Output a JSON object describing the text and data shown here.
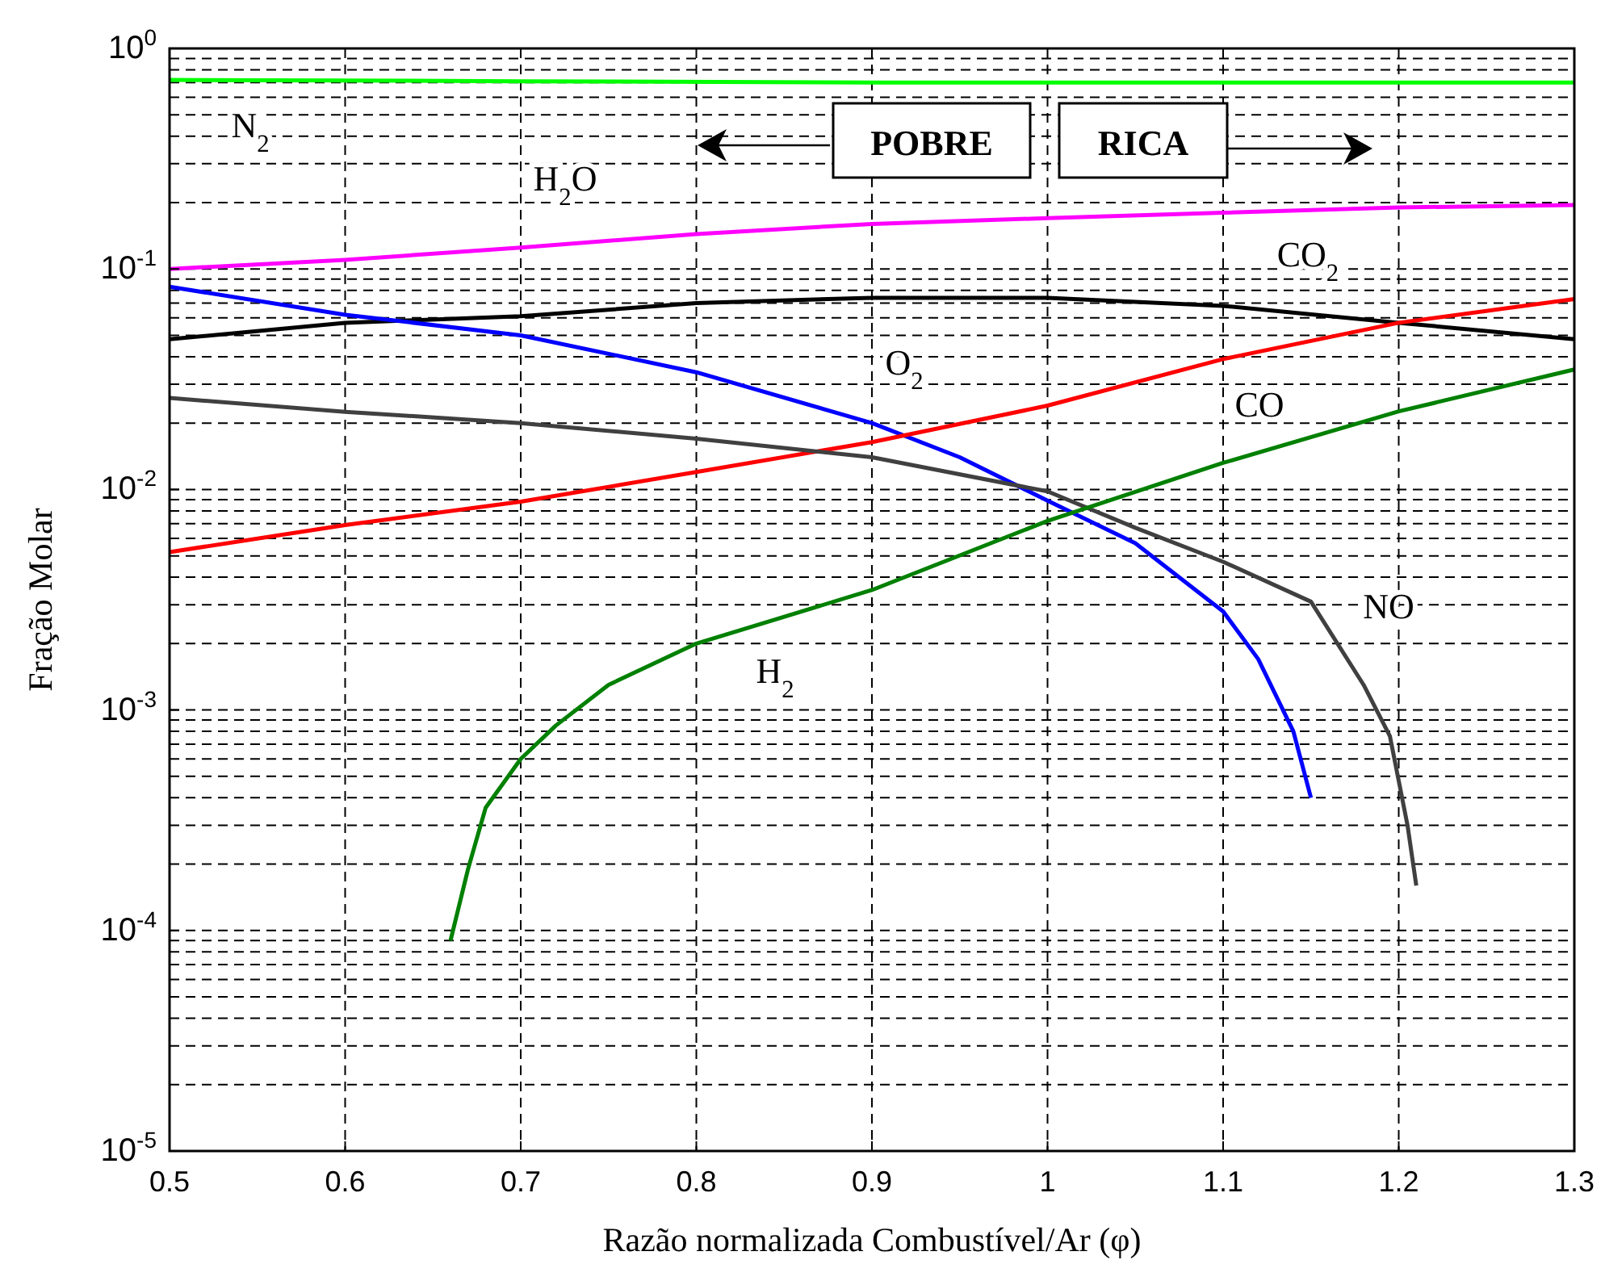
{
  "chart_data": {
    "type": "line",
    "xlabel": "Razão normalizada Combustível/Ar (φ)",
    "ylabel": "Fração Molar",
    "log": "y",
    "grid": true,
    "line_style": "solid",
    "xlim": [
      0.5,
      1.3
    ],
    "xticks": [
      0.5,
      0.6,
      0.7,
      0.8,
      0.9,
      1,
      1.1,
      1.2,
      1.3
    ],
    "ylim": [
      1e-05,
      1
    ],
    "yticks": [
      {
        "value": 1e-05,
        "label": "10$^{-5}$"
      },
      {
        "value": 0.0001,
        "label": "10$^{-4}$"
      },
      {
        "value": 0.001,
        "label": "10$^{-3}$"
      },
      {
        "value": 0.01,
        "label": "10$^{-2}$"
      },
      {
        "value": 0.1,
        "label": "10$^{-1}$"
      },
      {
        "value": 1,
        "label": "10$^{0}$"
      }
    ],
    "annotations": [
      "POBRE",
      "RICA"
    ],
    "series": [
      {
        "name": "N$_{2}$",
        "color": "#00ff00",
        "x": [
          0.5,
          0.7,
          0.9,
          1.1,
          1.3
        ],
        "values": [
          0.72,
          0.71,
          0.7,
          0.7,
          0.7
        ]
      },
      {
        "name": "H$_{2}$O",
        "color": "#ff00ff",
        "x": [
          0.5,
          0.6,
          0.7,
          0.8,
          0.9,
          1,
          1.1,
          1.2,
          1.3
        ],
        "values": [
          0.1,
          0.11,
          0.125,
          0.144,
          0.16,
          0.17,
          0.18,
          0.19,
          0.195
        ]
      },
      {
        "name": "CO$_{2}$",
        "color": "#000000",
        "x": [
          0.5,
          0.6,
          0.7,
          0.8,
          0.9,
          1,
          1.1,
          1.2,
          1.3
        ],
        "values": [
          0.048,
          0.057,
          0.061,
          0.07,
          0.074,
          0.074,
          0.068,
          0.057,
          0.048
        ]
      },
      {
        "name": "O$_{2}$",
        "color": "#0000ff",
        "x": [
          0.5,
          0.6,
          0.7,
          0.8,
          0.9,
          0.95,
          1,
          1.05,
          1.1,
          1.12,
          1.14,
          1.15
        ],
        "values": [
          0.083,
          0.062,
          0.05,
          0.034,
          0.02,
          0.014,
          0.0089,
          0.0057,
          0.0028,
          0.0017,
          0.0008,
          0.0004
        ]
      },
      {
        "name": "CO",
        "color": "#ff0000",
        "x": [
          0.5,
          0.6,
          0.7,
          0.8,
          0.9,
          1,
          1.1,
          1.2,
          1.3
        ],
        "values": [
          0.0052,
          0.0069,
          0.0088,
          0.012,
          0.0164,
          0.024,
          0.039,
          0.057,
          0.073
        ]
      },
      {
        "name": "NO",
        "color": "#404040",
        "x": [
          0.5,
          0.6,
          0.7,
          0.8,
          0.9,
          1,
          1.05,
          1.1,
          1.15,
          1.18,
          1.195,
          1.205,
          1.21
        ],
        "values": [
          0.026,
          0.0225,
          0.02,
          0.017,
          0.014,
          0.0098,
          0.0067,
          0.0047,
          0.0031,
          0.0013,
          0.00076,
          0.0003,
          0.00016
        ]
      },
      {
        "name": "H$_{2}$",
        "color": "#008000",
        "x": [
          0.66,
          0.67,
          0.68,
          0.7,
          0.72,
          0.75,
          0.8,
          0.9,
          1,
          1.1,
          1.2,
          1.3
        ],
        "values": [
          9e-05,
          0.00019,
          0.00036,
          0.0006,
          0.00085,
          0.0013,
          0.002,
          0.0035,
          0.0072,
          0.0132,
          0.0226,
          0.035
        ]
      }
    ]
  }
}
